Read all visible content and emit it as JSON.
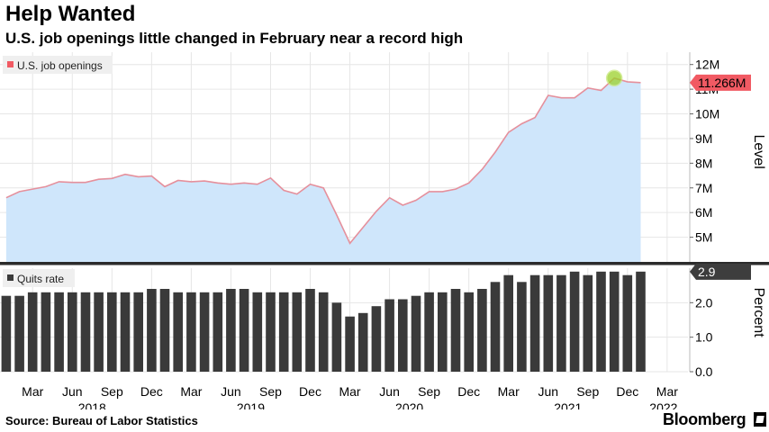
{
  "header": {
    "title": "Help Wanted",
    "subtitle": "U.S. job openings little changed in February near a record high"
  },
  "footer": {
    "source": "Source: Bureau of Labor Statistics",
    "brand": "Bloomberg"
  },
  "colors": {
    "area_fill": "#cfe6fb",
    "area_line": "#e5909c",
    "legend_top_swatch": "#f15a63",
    "value_tag": "#f15a63",
    "highlight_marker": "#9bd12a",
    "bar": "#3a3a3a",
    "grid": "#e6e6e6",
    "divider": "#2b2b2b"
  },
  "chart_data": [
    {
      "type": "area",
      "legend": "U.S. job openings",
      "ylabel": "Level",
      "ylim": [
        4.0,
        12.5
      ],
      "yticks": [
        5,
        6,
        7,
        8,
        9,
        10,
        11,
        12
      ],
      "ytick_labels": [
        "5M",
        "6M",
        "7M",
        "8M",
        "9M",
        "10M",
        "11M",
        "12M"
      ],
      "grid": true,
      "legend_position": "top-left",
      "axis_position": "right",
      "last_value_label": "11.266M",
      "highlight_index": 46,
      "x_start": "2018-01",
      "x_end": "2022-02",
      "series": [
        {
          "name": "U.S. job openings",
          "unit": "millions",
          "values": [
            6.6,
            6.85,
            6.95,
            7.05,
            7.25,
            7.22,
            7.22,
            7.35,
            7.38,
            7.55,
            7.45,
            7.48,
            7.05,
            7.3,
            7.25,
            7.28,
            7.2,
            7.15,
            7.2,
            7.15,
            7.4,
            6.9,
            6.75,
            7.15,
            7.0,
            5.9,
            4.75,
            5.4,
            6.05,
            6.6,
            6.3,
            6.5,
            6.85,
            6.85,
            6.95,
            7.2,
            7.75,
            8.45,
            9.25,
            9.6,
            9.85,
            10.75,
            10.65,
            10.65,
            11.05,
            10.95,
            11.45,
            11.3,
            11.266
          ]
        }
      ]
    },
    {
      "type": "bar",
      "legend": "Quits rate",
      "ylabel": "Percent",
      "ylim": [
        0,
        3.0
      ],
      "yticks": [
        0,
        1,
        2
      ],
      "ytick_labels": [
        "0.0",
        "1.0",
        "2.0"
      ],
      "grid": true,
      "legend_position": "top-left",
      "axis_position": "right",
      "last_value_label": "2.9",
      "x_start": "2018-01",
      "x_end": "2022-02",
      "series": [
        {
          "name": "Quits rate",
          "unit": "percent",
          "values": [
            2.2,
            2.2,
            2.3,
            2.3,
            2.3,
            2.3,
            2.3,
            2.3,
            2.3,
            2.3,
            2.3,
            2.4,
            2.4,
            2.3,
            2.3,
            2.3,
            2.3,
            2.4,
            2.4,
            2.3,
            2.3,
            2.3,
            2.3,
            2.4,
            2.3,
            2.0,
            1.6,
            1.7,
            1.9,
            2.1,
            2.1,
            2.2,
            2.3,
            2.3,
            2.4,
            2.3,
            2.4,
            2.6,
            2.8,
            2.6,
            2.8,
            2.8,
            2.8,
            2.9,
            2.8,
            2.9,
            2.9,
            2.8,
            2.9
          ]
        }
      ]
    }
  ],
  "x_axis": {
    "month_labels": [
      "Mar",
      "Jun",
      "Sep",
      "Dec",
      "Mar",
      "Jun",
      "Sep",
      "Dec",
      "Mar",
      "Jun",
      "Sep",
      "Dec",
      "Mar",
      "Jun",
      "Sep",
      "Dec",
      "Mar"
    ],
    "month_indices": [
      2,
      5,
      8,
      11,
      14,
      17,
      20,
      23,
      26,
      29,
      32,
      35,
      38,
      41,
      44,
      47,
      50
    ],
    "year_labels": [
      "2018",
      "2019",
      "2020",
      "2021",
      "2022"
    ],
    "year_center_indices": [
      6.5,
      18.5,
      30.5,
      42.5,
      50
    ]
  }
}
